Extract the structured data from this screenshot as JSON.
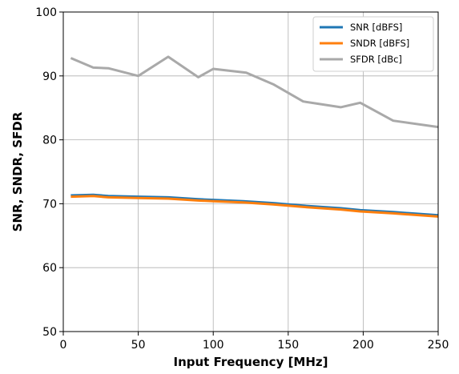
{
  "chart_data": {
    "type": "line",
    "title": "",
    "xlabel": "Input Frequency [MHz]",
    "ylabel": "SNR, SNDR, SFDR",
    "xlim": [
      0,
      250
    ],
    "ylim": [
      50,
      100
    ],
    "xticks": [
      0,
      50,
      100,
      150,
      200,
      250
    ],
    "yticks": [
      50,
      60,
      70,
      80,
      90,
      100
    ],
    "grid": true,
    "legend_position": "top-right",
    "series": [
      {
        "name": "SNR [dBFS]",
        "color": "#1f77b4",
        "x": [
          5,
          20,
          30,
          50,
          70,
          90,
          100,
          120,
          140,
          160,
          185,
          198,
          220,
          250
        ],
        "y": [
          71.3,
          71.4,
          71.2,
          71.1,
          71.0,
          70.7,
          70.6,
          70.4,
          70.1,
          69.7,
          69.3,
          69.0,
          68.7,
          68.2
        ]
      },
      {
        "name": "SNDR [dBFS]",
        "color": "#ff7f0e",
        "x": [
          5,
          20,
          30,
          50,
          70,
          90,
          100,
          120,
          140,
          160,
          185,
          198,
          220,
          250
        ],
        "y": [
          71.1,
          71.2,
          71.0,
          70.9,
          70.8,
          70.5,
          70.4,
          70.2,
          69.9,
          69.5,
          69.1,
          68.8,
          68.5,
          68.0
        ]
      },
      {
        "name": "SFDR [dBc]",
        "color": "#a9a9a9",
        "x": [
          5,
          20,
          30,
          50,
          70,
          90,
          100,
          122,
          140,
          160,
          185,
          198,
          220,
          250
        ],
        "y": [
          92.8,
          91.3,
          91.2,
          90.0,
          93.0,
          89.8,
          91.1,
          90.5,
          88.7,
          86.0,
          85.1,
          85.8,
          83.0,
          82.0
        ]
      }
    ]
  }
}
